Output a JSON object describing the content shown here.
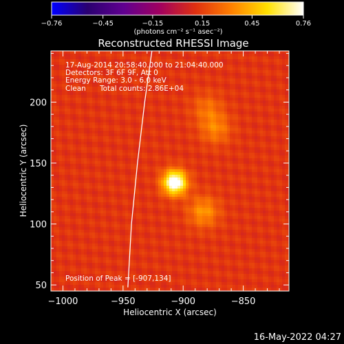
{
  "chart_data": {
    "type": "heatmap",
    "title": "Reconstructed RHESSI Image",
    "xlabel": "Heliocentric X (arcsec)",
    "ylabel": "Heliocentric Y (arcsec)",
    "xlim": [
      -1010,
      -812
    ],
    "ylim": [
      45,
      242
    ],
    "x_ticks": [
      -1000,
      -950,
      -900,
      -850
    ],
    "x_tick_labels": [
      "−1000",
      "−950",
      "−900",
      "−850"
    ],
    "y_ticks": [
      50,
      100,
      150,
      200
    ],
    "y_tick_labels": [
      "50",
      "100",
      "150",
      "200"
    ],
    "colorbar": {
      "range": [
        -0.76,
        0.76
      ],
      "ticks": [
        -0.76,
        -0.45,
        -0.15,
        0.15,
        0.45,
        0.76
      ],
      "tick_labels": [
        "−0.76",
        "−0.45",
        "−0.15",
        "0.15",
        "0.45",
        "0.76"
      ],
      "unit_label": "(photons cm⁻² s⁻¹ asec⁻²)",
      "colormap": [
        "#0000ff",
        "#2a0070",
        "#600090",
        "#a00060",
        "#e03010",
        "#ff8000",
        "#ffe000",
        "#ffffff"
      ]
    },
    "sources": [
      {
        "x": -907,
        "y": 134,
        "peak": 0.76
      },
      {
        "x": -883,
        "y": 110,
        "peak": 0.25
      },
      {
        "x": -873,
        "y": 178,
        "peak": 0.2
      },
      {
        "x": -880,
        "y": 195,
        "peak": 0.15
      }
    ],
    "background": 0.12,
    "limb_points": [
      [
        -946,
        48
      ],
      [
        -943,
        100
      ],
      [
        -938,
        150
      ],
      [
        -932,
        200
      ],
      [
        -926,
        242
      ]
    ],
    "annotations": {
      "time_range": "17-Aug-2014 20:58:40.000 to 21:04:40.000",
      "detectors": "Detectors: 3F 6F 9F, Att 0",
      "energy": "Energy Range: 3.0 - 6.0 keV",
      "clean_label": "Clean",
      "total_counts": "Total counts: 2.86E+04",
      "peak_position": "Position of Peak = [-907,134]"
    },
    "grid": false
  },
  "footer": {
    "timestamp": "16-May-2022 04:27"
  }
}
